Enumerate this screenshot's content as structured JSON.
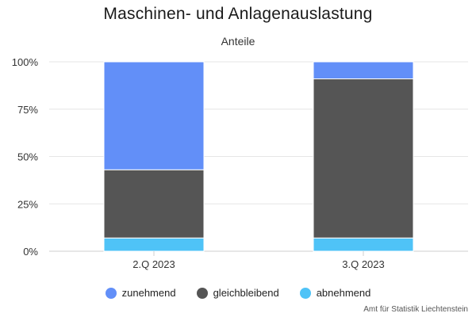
{
  "chart_data": {
    "type": "bar",
    "stacked": true,
    "title": "Maschinen- und Anlagenauslastung",
    "subtitle": "Anteile",
    "categories": [
      "2.Q 2023",
      "3.Q 2023"
    ],
    "series": [
      {
        "name": "abnehmend",
        "color": "#4fc3f7",
        "values": [
          7,
          7
        ]
      },
      {
        "name": "gleichbleibend",
        "color": "#555555",
        "values": [
          36,
          84
        ]
      },
      {
        "name": "zunehmend",
        "color": "#628ff8",
        "values": [
          57,
          9
        ]
      }
    ],
    "ylim": [
      0,
      100
    ],
    "yticks": [
      "0%",
      "25%",
      "50%",
      "75%",
      "100%"
    ],
    "grid": true,
    "legend_position": "bottom",
    "legend": [
      "zunehmend",
      "gleichbleibend",
      "abnehmend"
    ]
  },
  "credit": "Amt für Statistik Liechtenstein"
}
